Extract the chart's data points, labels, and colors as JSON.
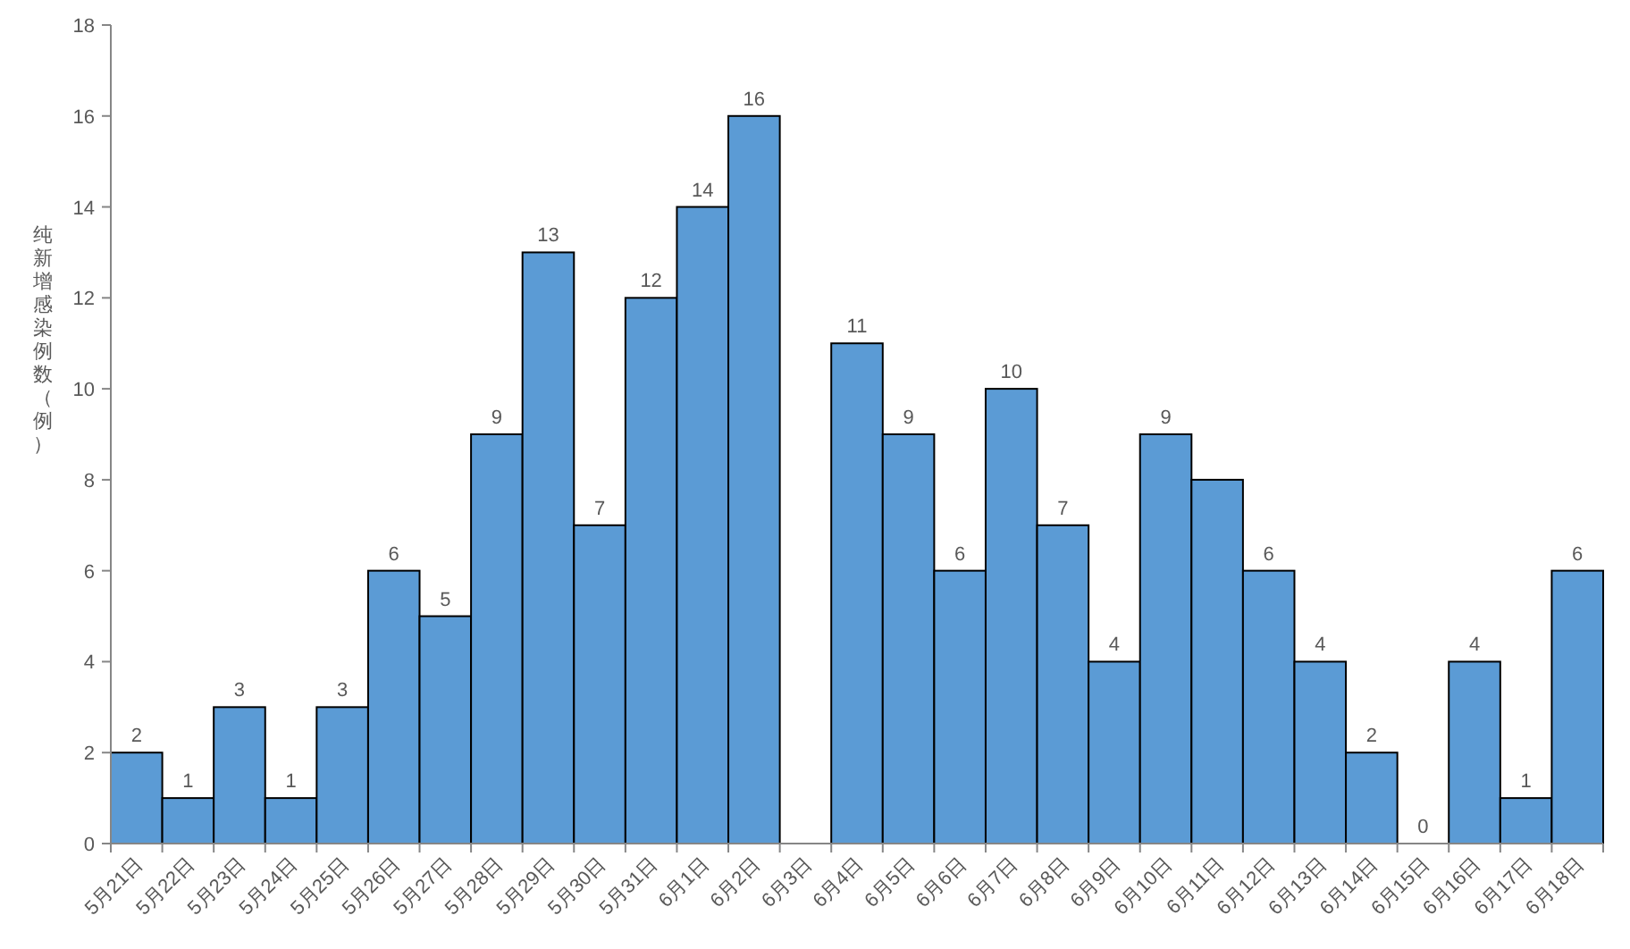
{
  "chart_data": {
    "type": "bar",
    "ylabel": "纯新增感染例数（例）",
    "categories": [
      "5月21日",
      "5月22日",
      "5月23日",
      "5月24日",
      "5月25日",
      "5月26日",
      "5月27日",
      "5月28日",
      "5月29日",
      "5月30日",
      "5月31日",
      "6月1日",
      "6月2日",
      "6月3日",
      "6月4日",
      "6月5日",
      "6月6日",
      "6月7日",
      "6月8日",
      "6月9日",
      "6月10日",
      "6月11日",
      "6月12日",
      "6月13日",
      "6月14日",
      "6月15日",
      "6月16日",
      "6月17日",
      "6月18日"
    ],
    "values": [
      2,
      1,
      3,
      1,
      3,
      6,
      5,
      9,
      13,
      7,
      12,
      14,
      16,
      null,
      11,
      9,
      6,
      10,
      7,
      4,
      9,
      8,
      6,
      4,
      2,
      0,
      4,
      1,
      6
    ],
    "value_labels": [
      "2",
      "1",
      "3",
      "1",
      "3",
      "6",
      "5",
      "9",
      "13",
      "7",
      "12",
      "14",
      "16",
      null,
      "11",
      "9",
      "6",
      "10",
      "7",
      "4",
      "9",
      null,
      "6",
      "4",
      "2",
      "0",
      "4",
      "1",
      "6"
    ],
    "color": "#5b9bd5",
    "ylim": [
      0,
      18
    ],
    "yticks": [
      0,
      2,
      4,
      6,
      8,
      10,
      12,
      14,
      16,
      18
    ],
    "grid": false
  }
}
